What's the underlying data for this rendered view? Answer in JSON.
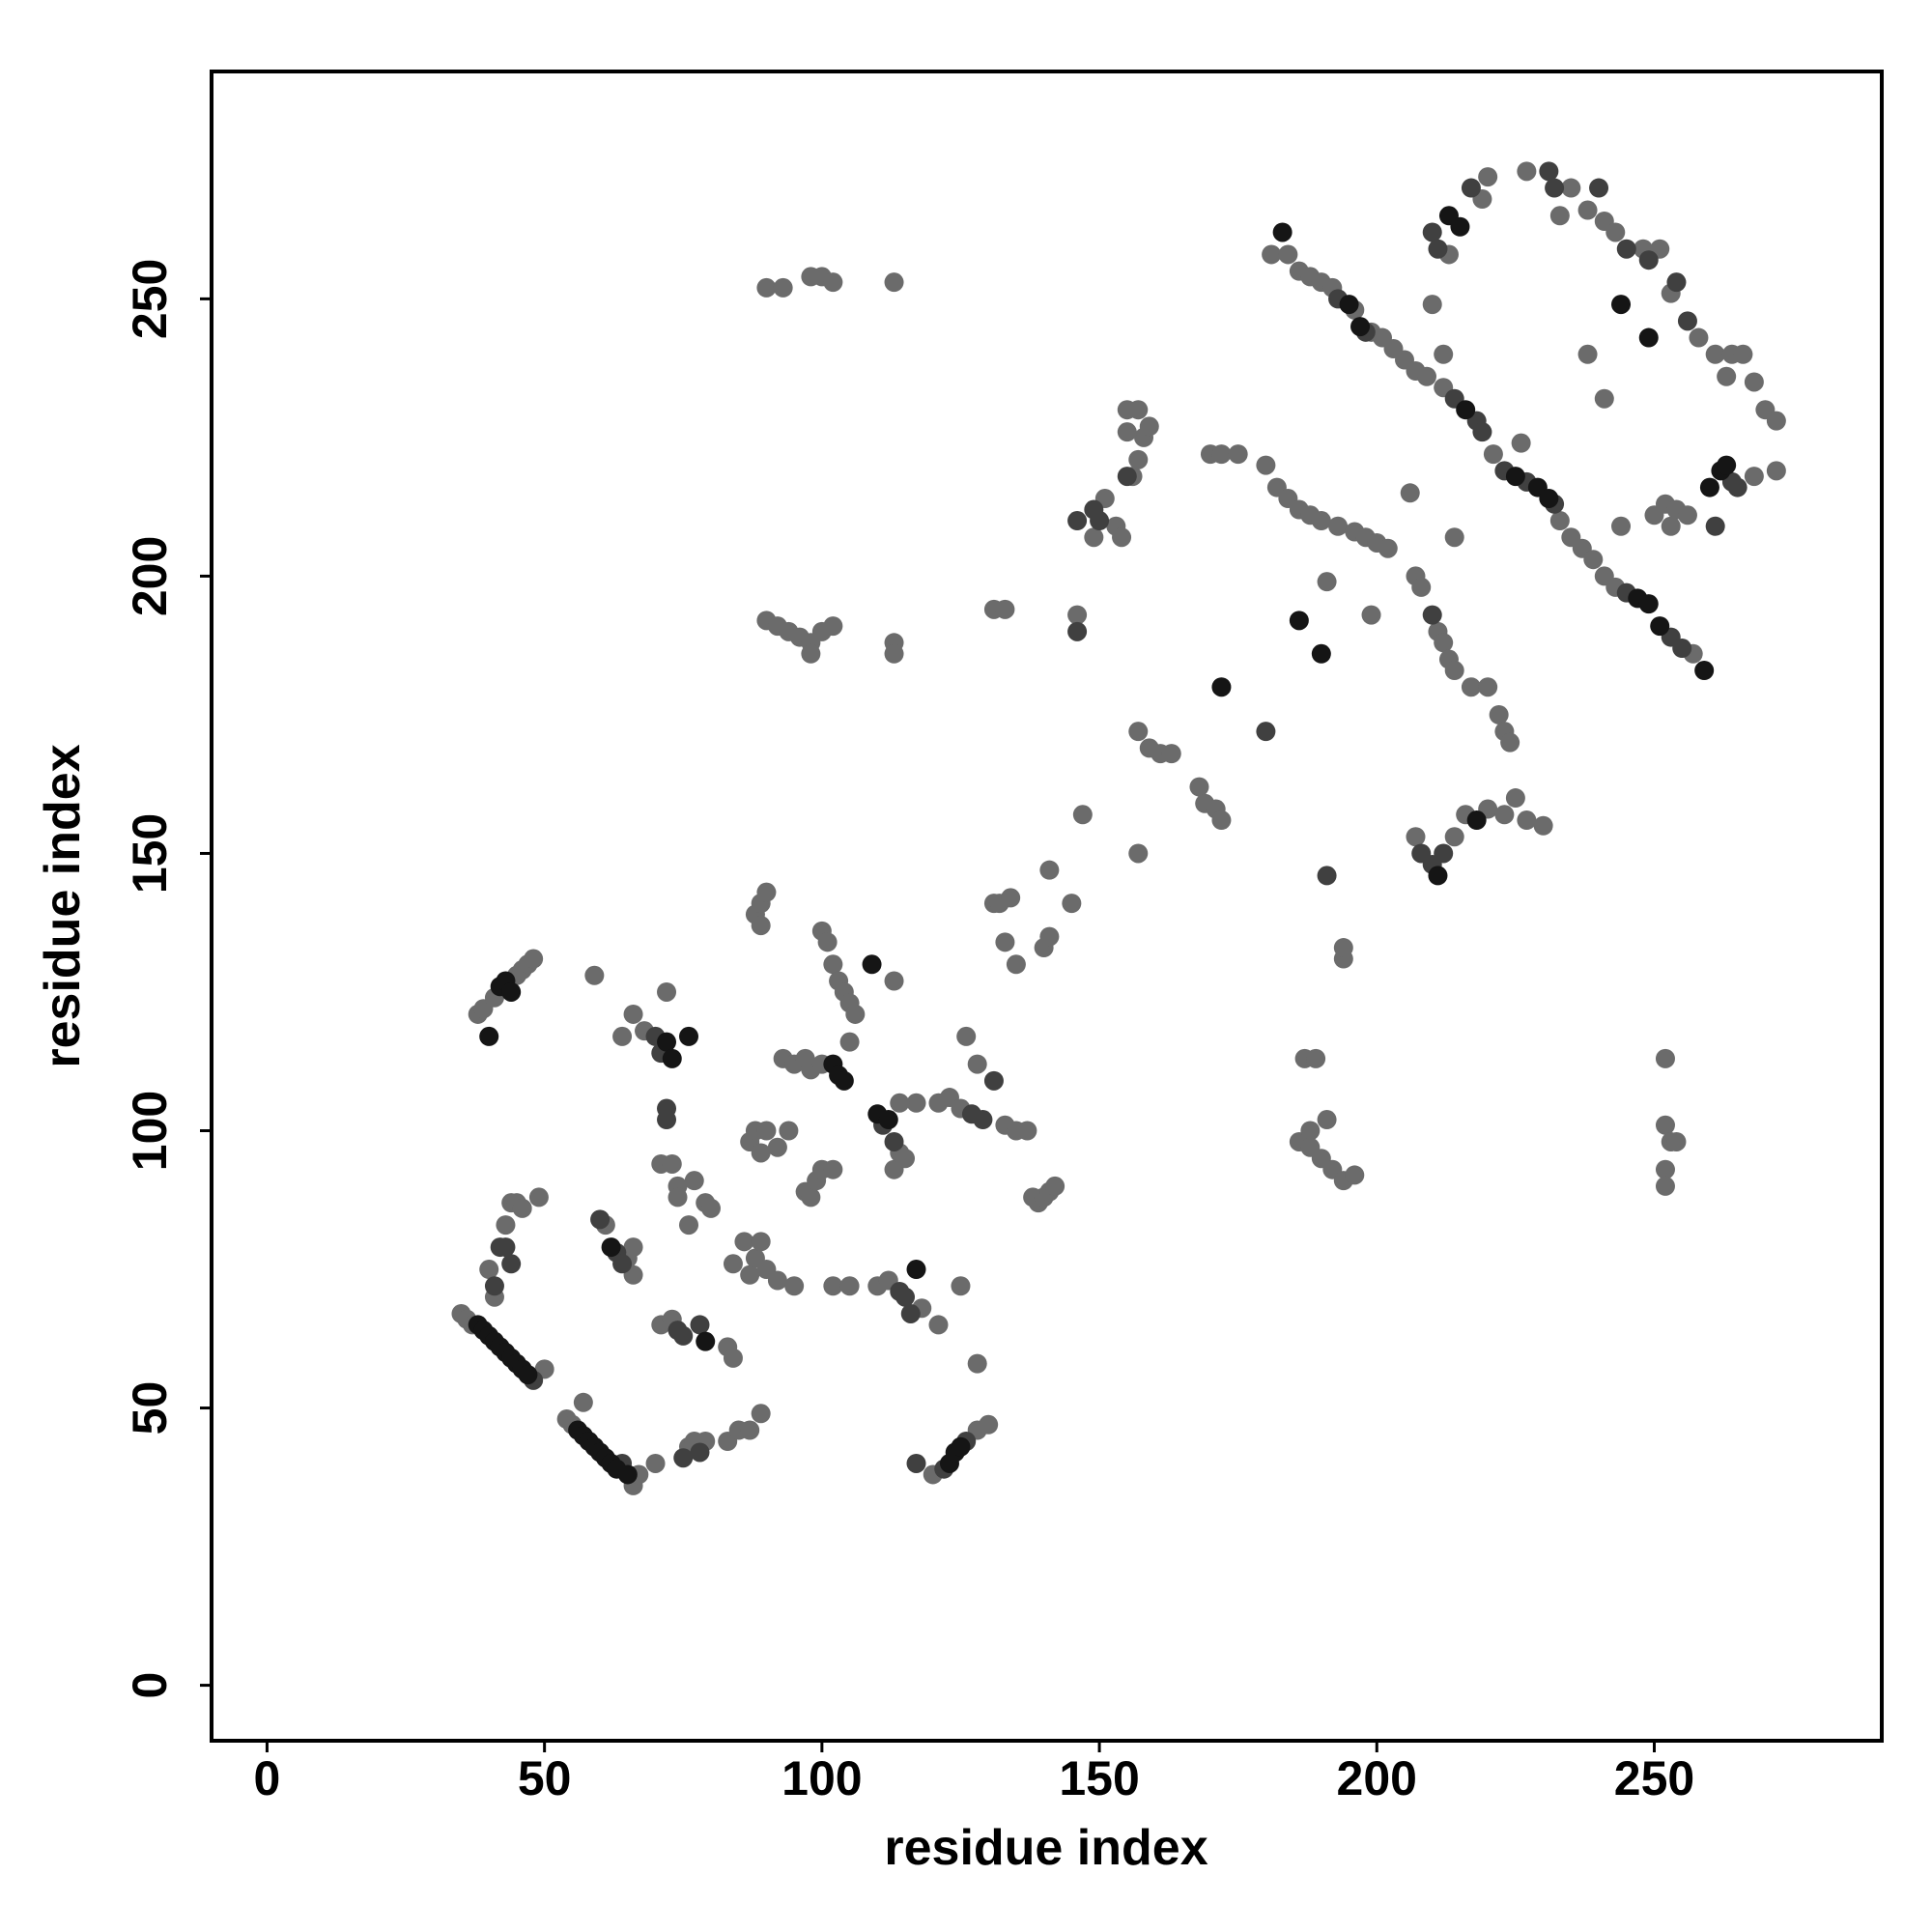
{
  "chart_data": {
    "type": "scatter",
    "x_label": "residue index",
    "y_label": "residue index",
    "xlim": [
      -10,
      291
    ],
    "ylim": [
      -10,
      291
    ],
    "xticks": [
      0,
      50,
      100,
      150,
      200,
      250
    ],
    "yticks": [
      0,
      50,
      100,
      150,
      200,
      250
    ],
    "grid": false,
    "series": [
      {
        "color": "#6b6b6b",
        "x": [
          35,
          36,
          37,
          50,
          40,
          44,
          45,
          46,
          41,
          43,
          49,
          38,
          39,
          41,
          45,
          46,
          47,
          48,
          54,
          55,
          57,
          66,
          67,
          61,
          65,
          66,
          66,
          59,
          64,
          66,
          68,
          72,
          71,
          73,
          74,
          74,
          77,
          79,
          80,
          76,
          71,
          73,
          83,
          84,
          70,
          76,
          77,
          79,
          83,
          85,
          87,
          89,
          84,
          86,
          87,
          88,
          89,
          90,
          92,
          95,
          87,
          88,
          89,
          90,
          92,
          94,
          88,
          89,
          90,
          89,
          93,
          95,
          97,
          98,
          100,
          97,
          98,
          99,
          100,
          102,
          100,
          101,
          102,
          103,
          104,
          105,
          106,
          105,
          102,
          105,
          113,
          113,
          114,
          115,
          117,
          114,
          110,
          112,
          118,
          121,
          125,
          120,
          128,
          130,
          121,
          123,
          125,
          133,
          135,
          137,
          128,
          126,
          128,
          138,
          139,
          140,
          141,
          142,
          131,
          132,
          134,
          133,
          135,
          140,
          141,
          141,
          145,
          147,
          90,
          92,
          94,
          96,
          98,
          100,
          102,
          98,
          113,
          113,
          90,
          93,
          98,
          100,
          102,
          113,
          131,
          133,
          146,
          149,
          151,
          153,
          154,
          156,
          157,
          158,
          159,
          155,
          155,
          157,
          157,
          157,
          159,
          161,
          163,
          168,
          169,
          171,
          172,
          170,
          172,
          175,
          181,
          184,
          186,
          188,
          190,
          192,
          196,
          199,
          201,
          203,
          205,
          207,
          209,
          212,
          221,
          233,
          235,
          237,
          239,
          241,
          243,
          257,
          180,
          182,
          184,
          186,
          188,
          190,
          193,
          196,
          198,
          200,
          202,
          207,
          208,
          211,
          212,
          213,
          214,
          217,
          220,
          222,
          223,
          224,
          207,
          214,
          216,
          220,
          223,
          225,
          227,
          230,
          206,
          214,
          191,
          199,
          187,
          189,
          194,
          194,
          186,
          188,
          190,
          192,
          194,
          196,
          191,
          188,
          252,
          252,
          253,
          254,
          252,
          252,
          210,
          212,
          219,
          220,
          213,
          227,
          233,
          235,
          238,
          241,
          243,
          248,
          251,
          238,
          241,
          226,
          253,
          258,
          261,
          264,
          266,
          268,
          270,
          272,
          263,
          250,
          252,
          254,
          256,
          268,
          272,
          253,
          244
        ],
        "values": [
          67,
          66,
          65,
          57,
          75,
          87,
          87,
          86,
          70,
          83,
          88,
          121,
          122,
          124,
          128,
          129,
          130,
          131,
          48,
          47,
          51,
          36,
          38,
          83,
          77,
          74,
          79,
          128,
          117,
          121,
          118,
          125,
          94,
          94,
          90,
          88,
          91,
          87,
          86,
          83,
          65,
          66,
          61,
          59,
          40,
          43,
          44,
          44,
          44,
          46,
          46,
          49,
          76,
          80,
          74,
          77,
          80,
          75,
          73,
          72,
          98,
          100,
          96,
          100,
          97,
          100,
          139,
          141,
          143,
          137,
          113,
          112,
          113,
          111,
          112,
          89,
          88,
          91,
          93,
          93,
          136,
          134,
          130,
          127,
          125,
          123,
          121,
          116,
          72,
          72,
          127,
          93,
          96,
          95,
          105,
          105,
          72,
          73,
          68,
          65,
          72,
          38,
          46,
          47,
          105,
          106,
          104,
          101,
          100,
          100,
          58,
          117,
          112,
          88,
          87,
          88,
          89,
          90,
          141,
          141,
          142,
          134,
          130,
          133,
          135,
          147,
          141,
          157,
          192,
          191,
          190,
          189,
          188,
          190,
          191,
          186,
          188,
          186,
          252,
          252,
          254,
          254,
          253,
          253,
          194,
          194,
          193,
          207,
          214,
          209,
          207,
          218,
          221,
          225,
          227,
          226,
          230,
          230,
          150,
          172,
          169,
          168,
          168,
          162,
          159,
          158,
          156,
          222,
          222,
          222,
          258,
          258,
          255,
          254,
          253,
          252,
          248,
          244,
          243,
          241,
          239,
          237,
          236,
          234,
          222,
          210,
          207,
          205,
          203,
          200,
          198,
          186,
          220,
          216,
          214,
          212,
          211,
          210,
          209,
          208,
          207,
          206,
          205,
          200,
          198,
          190,
          188,
          185,
          183,
          180,
          180,
          175,
          172,
          170,
          153,
          153,
          157,
          158,
          157,
          160,
          156,
          155,
          215,
          207,
          199,
          193,
          113,
          113,
          131,
          133,
          98,
          100,
          95,
          93,
          91,
          92,
          102,
          97,
          113,
          101,
          98,
          98,
          93,
          90,
          249,
          240,
          268,
          272,
          258,
          273,
          265,
          270,
          266,
          264,
          262,
          259,
          259,
          240,
          232,
          224,
          251,
          243,
          240,
          240,
          240,
          235,
          230,
          228,
          236,
          211,
          213,
          212,
          211,
          218,
          219,
          209,
          209
        ]
      },
      {
        "color": "#404040",
        "x": [
          41,
          42,
          43,
          44,
          48,
          64,
          60,
          63,
          64,
          70,
          71,
          72,
          72,
          74,
          75,
          78,
          75,
          78,
          111,
          113,
          114,
          115,
          116,
          117,
          122,
          126,
          127,
          129,
          131,
          146,
          149,
          150,
          155,
          180,
          146,
          193,
          198,
          214,
          218,
          219,
          223,
          227,
          232,
          245,
          253,
          255,
          210,
          211,
          217,
          231,
          232,
          240,
          245,
          249,
          254,
          256,
          261,
          264,
          265,
          210,
          208,
          212,
          191,
          210
        ],
        "values": [
          72,
          79,
          79,
          76,
          55,
          40,
          84,
          78,
          76,
          117,
          114,
          104,
          102,
          64,
          63,
          65,
          41,
          42,
          101,
          98,
          71,
          70,
          67,
          40,
          39,
          44,
          103,
          102,
          109,
          210,
          212,
          210,
          218,
          172,
          190,
          250,
          244,
          232,
          228,
          226,
          219,
          217,
          213,
          197,
          189,
          187,
          262,
          259,
          270,
          273,
          270,
          270,
          259,
          257,
          253,
          246,
          209,
          217,
          216,
          148,
          150,
          150,
          146,
          193
        ]
      },
      {
        "color": "#151515",
        "x": [
          38,
          39,
          40,
          41,
          42,
          43,
          44,
          45,
          46,
          47,
          40,
          42,
          43,
          44,
          56,
          57,
          58,
          59,
          60,
          61,
          62,
          63,
          65,
          62,
          72,
          76,
          73,
          102,
          103,
          104,
          110,
          112,
          117,
          123,
          124,
          125,
          109,
          79,
          183,
          195,
          197,
          216,
          225,
          229,
          231,
          247,
          249,
          251,
          259,
          213,
          215,
          244,
          249,
          262,
          260,
          263,
          186,
          190,
          211,
          218,
          172
        ],
        "values": [
          65,
          64,
          63,
          62,
          61,
          60,
          59,
          58,
          57,
          56,
          117,
          126,
          127,
          125,
          46,
          45,
          44,
          43,
          42,
          41,
          40,
          39,
          38,
          79,
          116,
          117,
          113,
          112,
          110,
          109,
          103,
          102,
          75,
          40,
          42,
          43,
          130,
          62,
          262,
          249,
          245,
          230,
          218,
          216,
          214,
          196,
          195,
          191,
          183,
          265,
          263,
          249,
          243,
          219,
          216,
          220,
          192,
          186,
          146,
          156,
          180
        ]
      }
    ]
  }
}
